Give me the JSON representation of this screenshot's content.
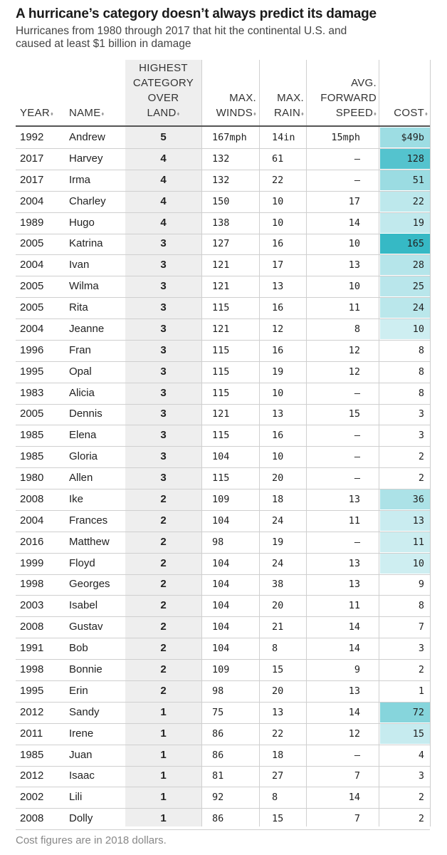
{
  "title": "A hurricane’s category doesn’t always predict its damage",
  "subtitle": "Hurricanes from 1980 through 2017 that hit the continental U.S. and caused at least $1 billion in damage",
  "footnote": "Cost figures are in 2018 dollars.",
  "sort_glyph": "⬧",
  "colors": {
    "cost_max": "#36b9c5",
    "cost_min": "#e3f5f7",
    "category_column": "#eeeeee"
  },
  "headers": {
    "year": "YEAR",
    "name": "NAME",
    "category": [
      "HIGHEST",
      "CATEGORY",
      "OVER",
      "LAND"
    ],
    "winds": [
      "MAX.",
      "WINDS"
    ],
    "rain": [
      "MAX.",
      "RAIN"
    ],
    "speed": [
      "AVG.",
      "FORWARD",
      "SPEED"
    ],
    "cost": "COST"
  },
  "chart_data": {
    "type": "table",
    "columns": [
      "YEAR",
      "NAME",
      "HIGHEST CATEGORY OVER LAND",
      "MAX. WINDS",
      "MAX. RAIN",
      "AVG. FORWARD SPEED",
      "COST"
    ],
    "rows": [
      {
        "year": "1992",
        "name": "Andrew",
        "category": "5",
        "winds": "167mph",
        "rain": "14in",
        "speed": "15mph",
        "cost": "$49b",
        "cost_value": 49
      },
      {
        "year": "2017",
        "name": "Harvey",
        "category": "4",
        "winds": "132",
        "rain": "61",
        "speed": "—",
        "cost": "128",
        "cost_value": 128
      },
      {
        "year": "2017",
        "name": "Irma",
        "category": "4",
        "winds": "132",
        "rain": "22",
        "speed": "—",
        "cost": "51",
        "cost_value": 51
      },
      {
        "year": "2004",
        "name": "Charley",
        "category": "4",
        "winds": "150",
        "rain": "10",
        "speed": "17",
        "cost": "22",
        "cost_value": 22
      },
      {
        "year": "1989",
        "name": "Hugo",
        "category": "4",
        "winds": "138",
        "rain": "10",
        "speed": "14",
        "cost": "19",
        "cost_value": 19
      },
      {
        "year": "2005",
        "name": "Katrina",
        "category": "3",
        "winds": "127",
        "rain": "16",
        "speed": "10",
        "cost": "165",
        "cost_value": 165
      },
      {
        "year": "2004",
        "name": "Ivan",
        "category": "3",
        "winds": "121",
        "rain": "17",
        "speed": "13",
        "cost": "28",
        "cost_value": 28
      },
      {
        "year": "2005",
        "name": "Wilma",
        "category": "3",
        "winds": "121",
        "rain": "13",
        "speed": "10",
        "cost": "25",
        "cost_value": 25
      },
      {
        "year": "2005",
        "name": "Rita",
        "category": "3",
        "winds": "115",
        "rain": "16",
        "speed": "11",
        "cost": "24",
        "cost_value": 24
      },
      {
        "year": "2004",
        "name": "Jeanne",
        "category": "3",
        "winds": "121",
        "rain": "12",
        "speed": "8",
        "cost": "10",
        "cost_value": 10
      },
      {
        "year": "1996",
        "name": "Fran",
        "category": "3",
        "winds": "115",
        "rain": "16",
        "speed": "12",
        "cost": "8",
        "cost_value": 8
      },
      {
        "year": "1995",
        "name": "Opal",
        "category": "3",
        "winds": "115",
        "rain": "19",
        "speed": "12",
        "cost": "8",
        "cost_value": 8
      },
      {
        "year": "1983",
        "name": "Alicia",
        "category": "3",
        "winds": "115",
        "rain": "10",
        "speed": "—",
        "cost": "8",
        "cost_value": 8
      },
      {
        "year": "2005",
        "name": "Dennis",
        "category": "3",
        "winds": "121",
        "rain": "13",
        "speed": "15",
        "cost": "3",
        "cost_value": 3
      },
      {
        "year": "1985",
        "name": "Elena",
        "category": "3",
        "winds": "115",
        "rain": "16",
        "speed": "—",
        "cost": "3",
        "cost_value": 3
      },
      {
        "year": "1985",
        "name": "Gloria",
        "category": "3",
        "winds": "104",
        "rain": "10",
        "speed": "—",
        "cost": "2",
        "cost_value": 2
      },
      {
        "year": "1980",
        "name": "Allen",
        "category": "3",
        "winds": "115",
        "rain": "20",
        "speed": "—",
        "cost": "2",
        "cost_value": 2
      },
      {
        "year": "2008",
        "name": "Ike",
        "category": "2",
        "winds": "109",
        "rain": "18",
        "speed": "13",
        "cost": "36",
        "cost_value": 36
      },
      {
        "year": "2004",
        "name": "Frances",
        "category": "2",
        "winds": "104",
        "rain": "24",
        "speed": "11",
        "cost": "13",
        "cost_value": 13
      },
      {
        "year": "2016",
        "name": "Matthew",
        "category": "2",
        "winds": "98",
        "rain": "19",
        "speed": "—",
        "cost": "11",
        "cost_value": 11
      },
      {
        "year": "1999",
        "name": "Floyd",
        "category": "2",
        "winds": "104",
        "rain": "24",
        "speed": "13",
        "cost": "10",
        "cost_value": 10
      },
      {
        "year": "1998",
        "name": "Georges",
        "category": "2",
        "winds": "104",
        "rain": "38",
        "speed": "13",
        "cost": "9",
        "cost_value": 9
      },
      {
        "year": "2003",
        "name": "Isabel",
        "category": "2",
        "winds": "104",
        "rain": "20",
        "speed": "11",
        "cost": "8",
        "cost_value": 8
      },
      {
        "year": "2008",
        "name": "Gustav",
        "category": "2",
        "winds": "104",
        "rain": "21",
        "speed": "14",
        "cost": "7",
        "cost_value": 7
      },
      {
        "year": "1991",
        "name": "Bob",
        "category": "2",
        "winds": "104",
        "rain": "8",
        "speed": "14",
        "cost": "3",
        "cost_value": 3
      },
      {
        "year": "1998",
        "name": "Bonnie",
        "category": "2",
        "winds": "109",
        "rain": "15",
        "speed": "9",
        "cost": "2",
        "cost_value": 2
      },
      {
        "year": "1995",
        "name": "Erin",
        "category": "2",
        "winds": "98",
        "rain": "20",
        "speed": "13",
        "cost": "1",
        "cost_value": 1
      },
      {
        "year": "2012",
        "name": "Sandy",
        "category": "1",
        "winds": "75",
        "rain": "13",
        "speed": "14",
        "cost": "72",
        "cost_value": 72
      },
      {
        "year": "2011",
        "name": "Irene",
        "category": "1",
        "winds": "86",
        "rain": "22",
        "speed": "12",
        "cost": "15",
        "cost_value": 15
      },
      {
        "year": "1985",
        "name": "Juan",
        "category": "1",
        "winds": "86",
        "rain": "18",
        "speed": "—",
        "cost": "4",
        "cost_value": 4
      },
      {
        "year": "2012",
        "name": "Isaac",
        "category": "1",
        "winds": "81",
        "rain": "27",
        "speed": "7",
        "cost": "3",
        "cost_value": 3
      },
      {
        "year": "2002",
        "name": "Lili",
        "category": "1",
        "winds": "92",
        "rain": "8",
        "speed": "14",
        "cost": "2",
        "cost_value": 2
      },
      {
        "year": "2008",
        "name": "Dolly",
        "category": "1",
        "winds": "86",
        "rain": "15",
        "speed": "7",
        "cost": "2",
        "cost_value": 2
      }
    ]
  }
}
